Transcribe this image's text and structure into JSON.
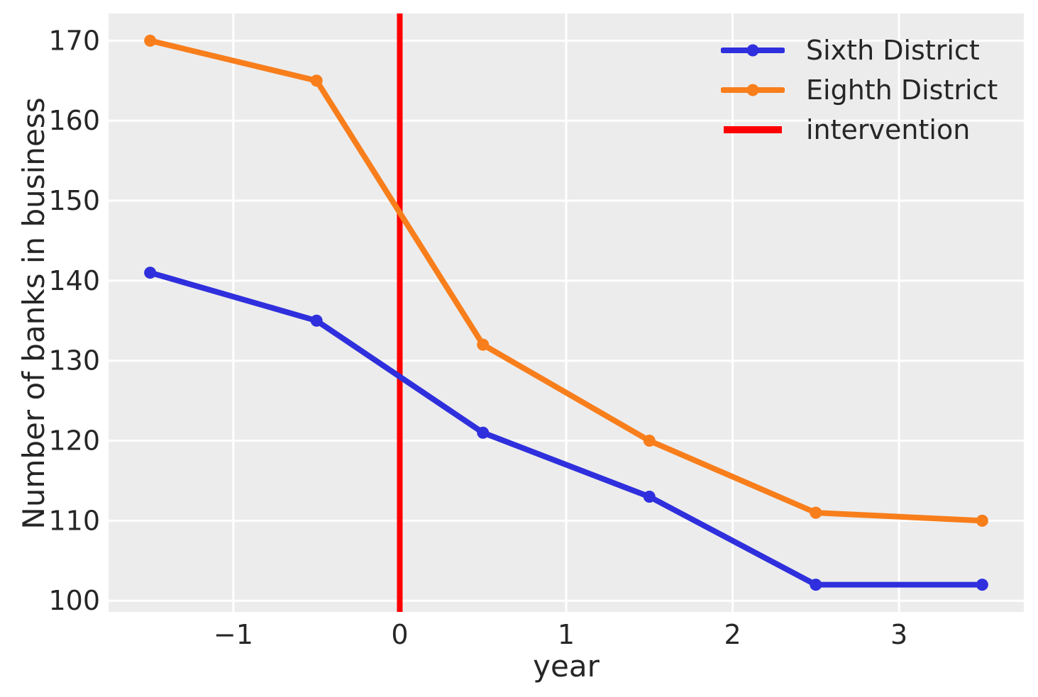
{
  "chart_data": {
    "type": "line",
    "title": "",
    "xlabel": "year",
    "ylabel": "Number of banks in business",
    "x": [
      -1.5,
      -0.5,
      0.5,
      1.5,
      2.5,
      3.5
    ],
    "series": [
      {
        "name": "Sixth District",
        "color": "#2f2fdd",
        "values": [
          141,
          135,
          121,
          113,
          102,
          102
        ]
      },
      {
        "name": "Eighth District",
        "color": "#f87e1c",
        "values": [
          170,
          165,
          132,
          120,
          111,
          110
        ]
      }
    ],
    "intervention": {
      "label": "intervention",
      "x": 0,
      "color": "#ff0000"
    },
    "xlim": [
      -1.75,
      3.75
    ],
    "ylim": [
      98.6,
      173.4
    ],
    "x_ticks": [
      {
        "label": "−1",
        "value": -1
      },
      {
        "label": "0",
        "value": 0
      },
      {
        "label": "1",
        "value": 1
      },
      {
        "label": "2",
        "value": 2
      },
      {
        "label": "3",
        "value": 3
      }
    ],
    "y_ticks": [
      100,
      110,
      120,
      130,
      140,
      150,
      160,
      170
    ],
    "grid": true,
    "legend_position": "upper right",
    "colors": {
      "plot_background": "#ececec",
      "gridline": "#ffffff",
      "text": "#262626",
      "figure_background": "#ffffff"
    }
  }
}
